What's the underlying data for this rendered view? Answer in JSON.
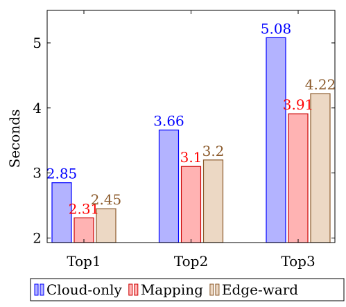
{
  "chart_data": {
    "type": "bar",
    "title": "",
    "xlabel": "",
    "ylabel": "Seconds",
    "categories": [
      "Top1",
      "Top2",
      "Top3"
    ],
    "ylim": [
      1.93,
      5.5
    ],
    "yticks": [
      2,
      3,
      4,
      5
    ],
    "grid": false,
    "legend_position": "bottom",
    "series": [
      {
        "name": "Cloud-only",
        "values": [
          2.85,
          3.66,
          5.08
        ],
        "fill": "#b3b3ff",
        "stroke": "#0000ff",
        "label_color": "#0000ff"
      },
      {
        "name": "Mapping",
        "values": [
          2.31,
          3.1,
          3.91
        ],
        "fill": "#ffb3b3",
        "stroke": "#cc0000",
        "label_color": "#ff0000"
      },
      {
        "name": "Edge-ward",
        "values": [
          2.45,
          3.2,
          4.22
        ],
        "fill": "#ecd8c4",
        "stroke": "#8b5a2b",
        "label_color": "#8b5a2b"
      }
    ]
  }
}
